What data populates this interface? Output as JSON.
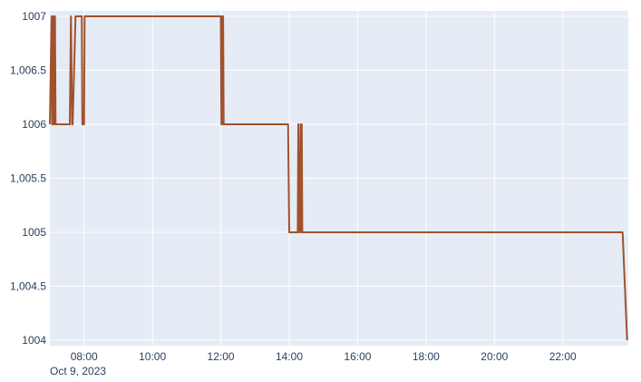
{
  "colors": {
    "plot_bg": "#e5ecf6",
    "grid": "#ffffff",
    "line": "#a0522d",
    "text": "#2a3f5f"
  },
  "chart_data": {
    "type": "line",
    "title": "",
    "xlabel": "",
    "ylabel": "",
    "x_date_label": "Oct 9, 2023",
    "xlim": [
      "07:00",
      "23:55"
    ],
    "ylim": [
      1003.95,
      1007.05
    ],
    "grid": true,
    "x_ticks": [
      "08:00",
      "10:00",
      "12:00",
      "14:00",
      "16:00",
      "18:00",
      "20:00",
      "22:00"
    ],
    "y_ticks": [
      "1004",
      "1,004.5",
      "1005",
      "1,005.5",
      "1006",
      "1,006.5",
      "1007"
    ],
    "series": [
      {
        "x": [
          "07:00",
          "07:03",
          "07:04",
          "07:05",
          "07:06",
          "07:07",
          "07:08",
          "07:09",
          "07:10",
          "07:12",
          "07:13",
          "07:35",
          "07:37",
          "07:39",
          "07:40",
          "07:45",
          "07:47",
          "07:56",
          "07:57",
          "08:00",
          "08:01",
          "08:05",
          "12:00",
          "12:01",
          "12:02",
          "12:03",
          "12:04",
          "12:05",
          "12:06",
          "12:07",
          "13:58",
          "14:00",
          "14:15",
          "14:16",
          "14:17",
          "14:18",
          "14:20",
          "14:21",
          "14:22",
          "14:23",
          "14:24",
          "14:26",
          "23:45",
          "23:53"
        ],
        "y": [
          1006,
          1007,
          1006,
          1007,
          1006,
          1007,
          1006,
          1007,
          1006,
          1006,
          1006,
          1006,
          1007,
          1006,
          1006,
          1007,
          1007,
          1007,
          1006,
          1006,
          1007,
          1007,
          1007,
          1006,
          1007,
          1006,
          1007,
          1006,
          1006,
          1006,
          1006,
          1005,
          1005,
          1006,
          1005,
          1005,
          1006,
          1005,
          1006,
          1005,
          1005,
          1005,
          1005,
          1004
        ]
      }
    ]
  }
}
